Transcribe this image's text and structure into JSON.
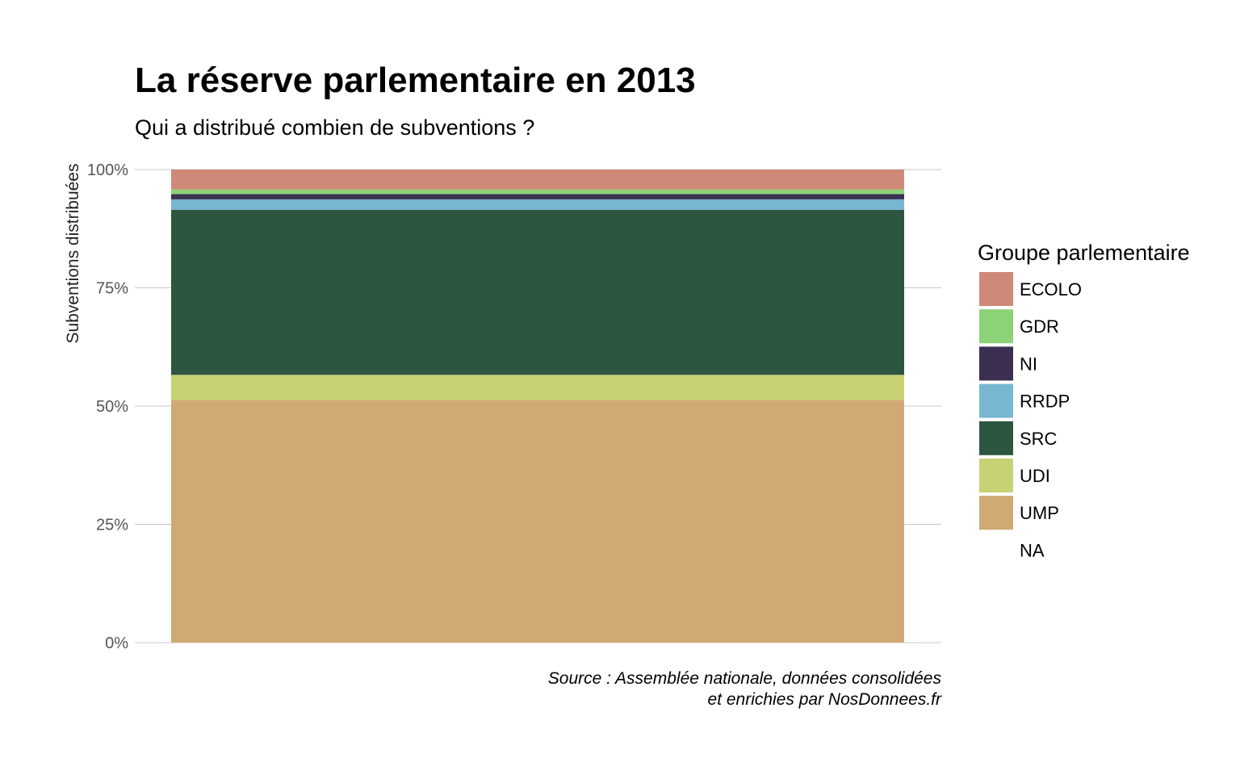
{
  "chart_data": {
    "type": "bar",
    "stacked": true,
    "percent": true,
    "title": "La réserve parlementaire en 2013",
    "subtitle": "Qui a distribué combien de subventions ?",
    "xlabel": "",
    "ylabel": "Subventions distribuées",
    "ylim": [
      0,
      100
    ],
    "yticks": [
      "0%",
      "25%",
      "50%",
      "75%",
      "100%"
    ],
    "yticks_values": [
      0,
      25,
      50,
      75,
      100
    ],
    "grid": true,
    "legend": {
      "title": "Groupe parlementaire",
      "position": "right"
    },
    "series": [
      {
        "name": "UMP",
        "value": 51.3,
        "color": "#d0aa74"
      },
      {
        "name": "UDI",
        "value": 5.3,
        "color": "#c8d275"
      },
      {
        "name": "SRC",
        "value": 34.9,
        "color": "#2d5641"
      },
      {
        "name": "RRDP",
        "value": 2.2,
        "color": "#77b7d1"
      },
      {
        "name": "NI",
        "value": 1.1,
        "color": "#3c2f52"
      },
      {
        "name": "GDR",
        "value": 1.0,
        "color": "#8ed277"
      },
      {
        "name": "ECOLO",
        "value": 4.2,
        "color": "#cf8978"
      }
    ],
    "legend_order": [
      "ECOLO",
      "GDR",
      "NI",
      "RRDP",
      "SRC",
      "UDI",
      "UMP",
      "NA"
    ],
    "caption_line1": "Source : Assemblée nationale, données consolidées",
    "caption_line2": "et enrichies par NosDonnees.fr"
  }
}
